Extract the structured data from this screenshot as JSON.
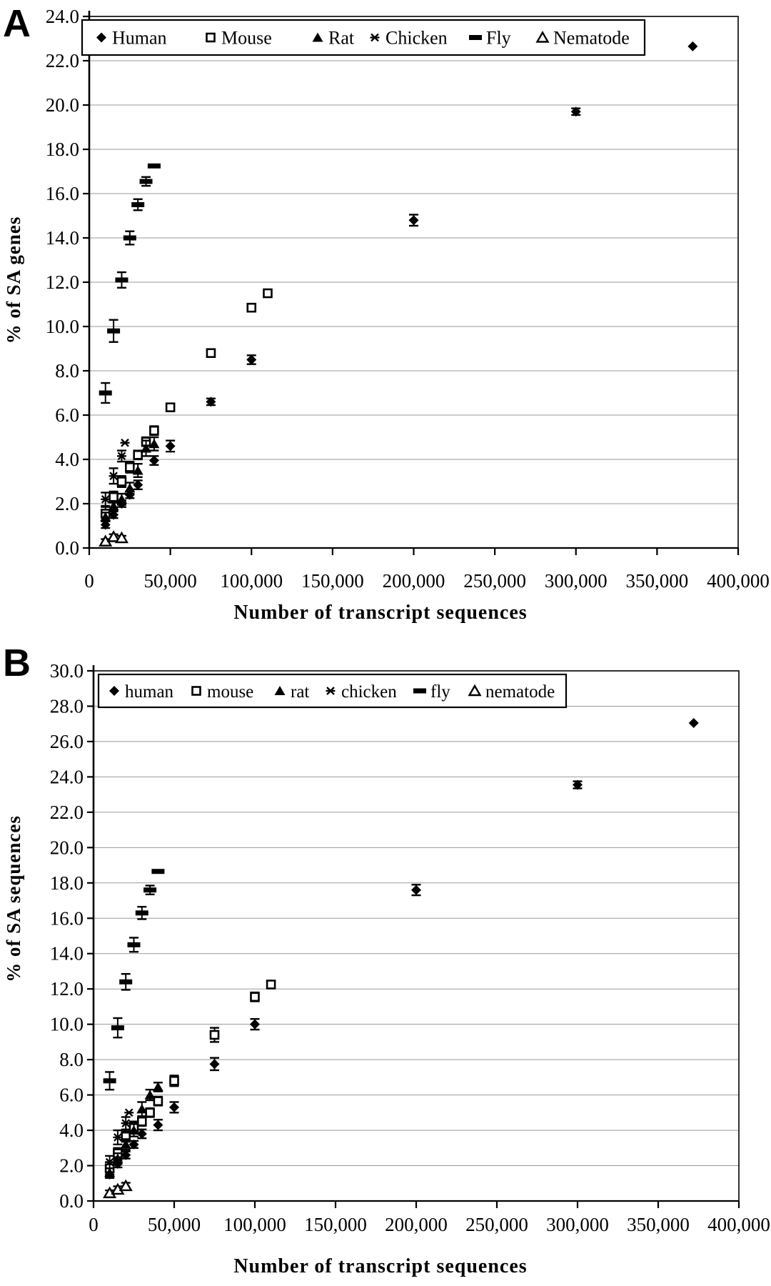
{
  "chart_data": [
    {
      "type": "scatter",
      "panel_label": "A",
      "xlabel": "Number of transcript sequences",
      "ylabel": "% of SA genes",
      "xlim": [
        0,
        400000
      ],
      "ylim": [
        0,
        24
      ],
      "x_tick_labels": [
        "0",
        "50,000",
        "100,000",
        "150,000",
        "200,000",
        "250,000",
        "300,000",
        "350,000",
        "400,000"
      ],
      "y_tick_labels": [
        "0.0",
        "2.0",
        "4.0",
        "6.0",
        "8.0",
        "10.0",
        "12.0",
        "14.0",
        "16.0",
        "18.0",
        "20.0",
        "22.0",
        "24.0"
      ],
      "grid": "horizontal-gridlines",
      "legend_position": "top-inside",
      "series": [
        {
          "name": "human",
          "label": "Human",
          "marker": "diamond-filled",
          "points": [
            [
              10000,
              1.05,
              0.15
            ],
            [
              15000,
              1.5,
              0.15
            ],
            [
              20000,
              2.0,
              0.15
            ],
            [
              25000,
              2.4,
              0.15
            ],
            [
              30000,
              2.85,
              0.2
            ],
            [
              40000,
              3.95,
              0.2
            ],
            [
              50000,
              4.6,
              0.25
            ],
            [
              75000,
              6.6,
              0.15
            ],
            [
              100000,
              8.5,
              0.2
            ],
            [
              200000,
              14.8,
              0.25
            ],
            [
              300000,
              19.7,
              0.15
            ],
            [
              372000,
              22.65,
              0
            ]
          ]
        },
        {
          "name": "mouse",
          "label": "Mouse",
          "marker": "square-open",
          "points": [
            [
              10000,
              1.55,
              0.3
            ],
            [
              15000,
              2.3,
              0.25
            ],
            [
              20000,
              3.0,
              0.25
            ],
            [
              25000,
              3.65,
              0.25
            ],
            [
              30000,
              4.2,
              0.2
            ],
            [
              35000,
              4.8,
              0.2
            ],
            [
              40000,
              5.3,
              0.2
            ],
            [
              50000,
              6.35,
              0.15
            ],
            [
              75000,
              8.8,
              0.15
            ],
            [
              100000,
              10.85,
              0.15
            ],
            [
              110000,
              11.5,
              0
            ]
          ]
        },
        {
          "name": "rat",
          "label": "Rat",
          "marker": "triangle-filled",
          "points": [
            [
              10000,
              1.4,
              0.2
            ],
            [
              15000,
              1.9,
              0.2
            ],
            [
              20000,
              2.2,
              0.25
            ],
            [
              25000,
              2.7,
              0.25
            ],
            [
              30000,
              3.5,
              0.3
            ],
            [
              35000,
              4.5,
              0.35
            ],
            [
              40000,
              4.7,
              0.3
            ]
          ]
        },
        {
          "name": "chicken",
          "label": "Chicken",
          "marker": "asterisk",
          "points": [
            [
              10000,
              2.2,
              0.3
            ],
            [
              15000,
              3.25,
              0.35
            ],
            [
              20000,
              4.15,
              0.25
            ],
            [
              22000,
              4.75,
              0
            ]
          ]
        },
        {
          "name": "fly",
          "label": "Fly",
          "marker": "dash",
          "points": [
            [
              10000,
              7.0,
              0.45
            ],
            [
              15000,
              9.8,
              0.5
            ],
            [
              20000,
              12.1,
              0.35
            ],
            [
              25000,
              14.0,
              0.3
            ],
            [
              30000,
              15.5,
              0.25
            ],
            [
              35000,
              16.55,
              0.2
            ],
            [
              40000,
              17.25,
              0
            ]
          ]
        },
        {
          "name": "nematode",
          "label": "Nematode",
          "marker": "triangle-open",
          "points": [
            [
              10000,
              0.3,
              0.1
            ],
            [
              15000,
              0.5,
              0.12
            ],
            [
              20000,
              0.45,
              0.1
            ]
          ]
        }
      ]
    },
    {
      "type": "scatter",
      "panel_label": "B",
      "xlabel": "Number of transcript sequences",
      "ylabel": "% of SA sequences",
      "xlim": [
        0,
        400000
      ],
      "ylim": [
        0,
        30
      ],
      "x_tick_labels": [
        "0",
        "50,000",
        "100,000",
        "150,000",
        "200,000",
        "250,000",
        "300,000",
        "350,000",
        "400,000"
      ],
      "y_tick_labels": [
        "0.0",
        "2.0",
        "4.0",
        "6.0",
        "8.0",
        "10.0",
        "12.0",
        "14.0",
        "16.0",
        "18.0",
        "20.0",
        "22.0",
        "24.0",
        "26.0",
        "28.0",
        "30.0"
      ],
      "grid": "horizontal-gridlines",
      "legend_position": "top-inside",
      "series": [
        {
          "name": "human",
          "label": "human",
          "marker": "diamond-filled",
          "points": [
            [
              10000,
              1.5,
              0.2
            ],
            [
              15000,
              2.1,
              0.2
            ],
            [
              20000,
              2.6,
              0.2
            ],
            [
              25000,
              3.2,
              0.2
            ],
            [
              30000,
              3.8,
              0.25
            ],
            [
              40000,
              4.3,
              0.3
            ],
            [
              50000,
              5.3,
              0.3
            ],
            [
              75000,
              7.75,
              0.35
            ],
            [
              100000,
              10.0,
              0.3
            ],
            [
              200000,
              17.6,
              0.3
            ],
            [
              300000,
              23.55,
              0.2
            ],
            [
              372000,
              27.05,
              0
            ]
          ]
        },
        {
          "name": "mouse",
          "label": "mouse",
          "marker": "square-open",
          "points": [
            [
              10000,
              1.85,
              0.35
            ],
            [
              15000,
              2.7,
              0.3
            ],
            [
              20000,
              3.65,
              0.3
            ],
            [
              25000,
              4.2,
              0.3
            ],
            [
              30000,
              4.5,
              0.25
            ],
            [
              35000,
              5.0,
              0.25
            ],
            [
              40000,
              5.65,
              0.25
            ],
            [
              50000,
              6.8,
              0.3
            ],
            [
              75000,
              9.4,
              0.4
            ],
            [
              100000,
              11.55,
              0.25
            ],
            [
              110000,
              12.25,
              0
            ]
          ]
        },
        {
          "name": "rat",
          "label": "rat",
          "marker": "triangle-filled",
          "points": [
            [
              10000,
              1.6,
              0.25
            ],
            [
              15000,
              2.4,
              0.3
            ],
            [
              20000,
              3.2,
              0.3
            ],
            [
              25000,
              4.0,
              0.35
            ],
            [
              30000,
              5.2,
              0.4
            ],
            [
              35000,
              6.0,
              0.3
            ],
            [
              40000,
              6.45,
              0.25
            ]
          ]
        },
        {
          "name": "chicken",
          "label": "chicken",
          "marker": "asterisk",
          "points": [
            [
              10000,
              2.2,
              0.35
            ],
            [
              15000,
              3.6,
              0.4
            ],
            [
              20000,
              4.4,
              0.35
            ],
            [
              22000,
              5.0,
              0
            ]
          ]
        },
        {
          "name": "fly",
          "label": "fly",
          "marker": "dash",
          "points": [
            [
              10000,
              6.8,
              0.5
            ],
            [
              15000,
              9.8,
              0.55
            ],
            [
              20000,
              12.4,
              0.45
            ],
            [
              25000,
              14.5,
              0.4
            ],
            [
              30000,
              16.3,
              0.35
            ],
            [
              35000,
              17.6,
              0.25
            ],
            [
              40000,
              18.65,
              0
            ]
          ]
        },
        {
          "name": "nematode",
          "label": "nematode",
          "marker": "triangle-open",
          "points": [
            [
              10000,
              0.45,
              0.15
            ],
            [
              15000,
              0.65,
              0.18
            ],
            [
              20000,
              0.85,
              0.18
            ]
          ]
        }
      ]
    }
  ]
}
